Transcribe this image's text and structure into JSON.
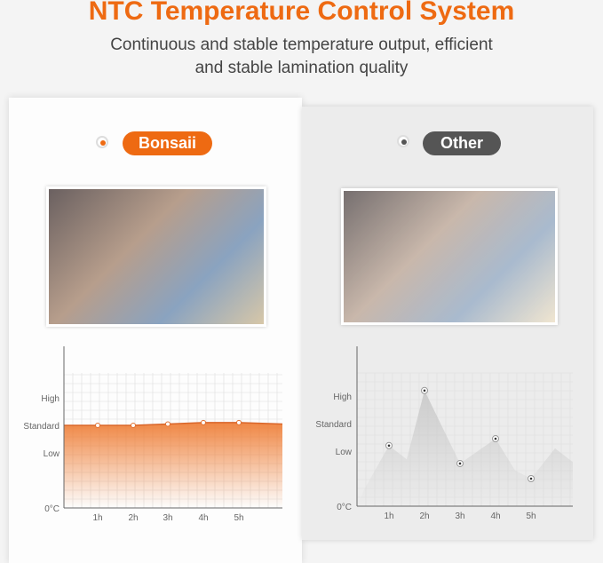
{
  "title": "NTC Temperature Control System",
  "subtitle": [
    "Continuous and stable temperature output, efficient",
    "and stable lamination quality"
  ],
  "left": {
    "label": "Bonsaii",
    "accent": "#ee6a12",
    "selected": true
  },
  "right": {
    "label": "Other",
    "accent": "#555555",
    "selected": false
  },
  "chart_data": [
    {
      "type": "area",
      "series_name": "Bonsaii",
      "categories": [
        "1h",
        "2h",
        "3h",
        "4h",
        "5h"
      ],
      "values": [
        3.0,
        3.0,
        3.05,
        3.1,
        3.1
      ],
      "y_ticks": [
        {
          "label": "0°C",
          "value": 0
        },
        {
          "label": "Low",
          "value": 2
        },
        {
          "label": "Standard",
          "value": 3
        },
        {
          "label": "High",
          "value": 4
        }
      ],
      "ylim": [
        0,
        5.5
      ],
      "grid": true,
      "color": "#ee7a30"
    },
    {
      "type": "area",
      "series_name": "Other",
      "categories": [
        "1h",
        "2h",
        "3h",
        "4h",
        "5h"
      ],
      "values": [
        2.2,
        4.2,
        1.55,
        2.45,
        1.0
      ],
      "y_ticks": [
        {
          "label": "0°C",
          "value": 0
        },
        {
          "label": "Low",
          "value": 2
        },
        {
          "label": "Standard",
          "value": 3
        },
        {
          "label": "High",
          "value": 4
        }
      ],
      "ylim": [
        0,
        5.5
      ],
      "grid": true,
      "color": "#c8c8c8"
    }
  ]
}
